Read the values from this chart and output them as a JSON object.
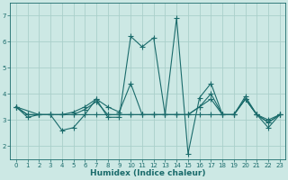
{
  "xlabel": "Humidex (Indice chaleur)",
  "ylabel": "",
  "bg_color": "#cce8e4",
  "grid_color": "#aacfca",
  "line_color": "#1a6b6b",
  "xlim": [
    -0.5,
    23.5
  ],
  "ylim": [
    1.5,
    7.5
  ],
  "xticks": [
    0,
    1,
    2,
    3,
    4,
    5,
    6,
    7,
    8,
    9,
    10,
    11,
    12,
    13,
    14,
    15,
    16,
    17,
    18,
    19,
    20,
    21,
    22,
    23
  ],
  "yticks": [
    2,
    3,
    4,
    5,
    6,
    7
  ],
  "series": [
    {
      "x": [
        0,
        1,
        2,
        3,
        4,
        5,
        6,
        7,
        8,
        9,
        10,
        11,
        12,
        13,
        14,
        15,
        16,
        17,
        18,
        19,
        20,
        21,
        22,
        23
      ],
      "y": [
        3.5,
        3.1,
        3.2,
        3.2,
        2.6,
        2.7,
        3.2,
        3.8,
        3.1,
        3.1,
        6.2,
        5.8,
        6.15,
        3.2,
        6.9,
        1.7,
        3.85,
        4.4,
        3.2,
        3.2,
        3.9,
        3.2,
        2.7,
        3.2
      ]
    },
    {
      "x": [
        0,
        1,
        2,
        3,
        4,
        5,
        6,
        7,
        8,
        9,
        10,
        11,
        12,
        13,
        14,
        15,
        16,
        17,
        18,
        19,
        20,
        21,
        22,
        23
      ],
      "y": [
        3.5,
        3.2,
        3.2,
        3.2,
        3.2,
        3.3,
        3.5,
        3.8,
        3.5,
        3.3,
        4.4,
        3.2,
        3.2,
        3.2,
        3.2,
        3.2,
        3.5,
        3.8,
        3.2,
        3.2,
        3.8,
        3.2,
        3.0,
        3.2
      ]
    },
    {
      "x": [
        0,
        2,
        3,
        4,
        5,
        6,
        7,
        8,
        9,
        10,
        11,
        12,
        13,
        14,
        15,
        16,
        17,
        18,
        19,
        20,
        21,
        22,
        23
      ],
      "y": [
        3.5,
        3.2,
        3.2,
        3.2,
        3.2,
        3.4,
        3.7,
        3.2,
        3.2,
        3.2,
        3.2,
        3.2,
        3.2,
        3.2,
        3.2,
        3.5,
        4.0,
        3.2,
        3.2,
        3.8,
        3.2,
        2.9,
        3.2
      ]
    },
    {
      "x": [
        0,
        1,
        2,
        3,
        4,
        5,
        6,
        7,
        8,
        9,
        10,
        11,
        12,
        13,
        14,
        15,
        16,
        17,
        18,
        19,
        20,
        21,
        22,
        23
      ],
      "y": [
        3.5,
        3.2,
        3.2,
        3.2,
        3.2,
        3.2,
        3.2,
        3.2,
        3.2,
        3.2,
        3.2,
        3.2,
        3.2,
        3.2,
        3.2,
        3.2,
        3.2,
        3.2,
        3.2,
        3.2,
        3.8,
        3.2,
        2.9,
        3.2
      ]
    }
  ]
}
